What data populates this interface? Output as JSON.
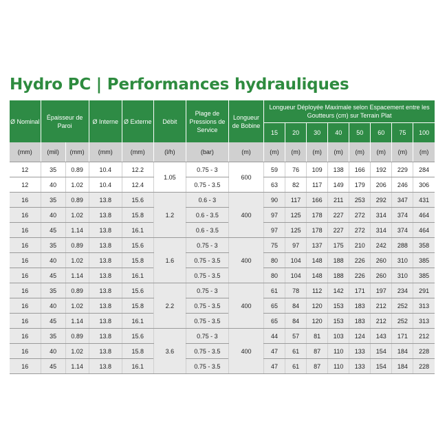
{
  "title": "Hydro PC | Performances hydrauliques",
  "headers": {
    "nominal": "Ø Nominal",
    "epaisseur": "Épaisseur de Paroi",
    "interne": "Ø Interne",
    "externe": "Ø Externe",
    "debit": "Débit",
    "plage": "Plage de Pressions de Service",
    "longueur_bobine": "Longueur de Bobine",
    "longueur_deployee": "Longueur Déployée Maximale selon Espacement entre les Goutteurs (cm) sur Terrain Plat",
    "spacings": [
      "15",
      "20",
      "30",
      "40",
      "50",
      "60",
      "75",
      "100"
    ]
  },
  "units": [
    "(mm)",
    "(mil)",
    "(mm)",
    "(mm)",
    "(mm)",
    "(l/h)",
    "(bar)",
    "(m)",
    "(m)",
    "(m)",
    "(m)",
    "(m)",
    "(m)",
    "(m)",
    "(m)",
    "(m)"
  ],
  "groups": [
    {
      "debit": "1.05",
      "longueur": "600",
      "shade": "white",
      "rows": [
        {
          "nominal": "12",
          "mil": "35",
          "ep": "0.89",
          "int": "10.4",
          "ext": "12.2",
          "plage": "0.75 - 3",
          "vals": [
            "59",
            "76",
            "109",
            "138",
            "166",
            "192",
            "229",
            "284"
          ]
        },
        {
          "nominal": "12",
          "mil": "40",
          "ep": "1.02",
          "int": "10.4",
          "ext": "12.4",
          "plage": "0.75 - 3.5",
          "vals": [
            "63",
            "82",
            "117",
            "149",
            "179",
            "206",
            "246",
            "306"
          ]
        }
      ]
    },
    {
      "debit": "1.2",
      "longueur": "400",
      "shade": "gray",
      "rows": [
        {
          "nominal": "16",
          "mil": "35",
          "ep": "0.89",
          "int": "13.8",
          "ext": "15.6",
          "plage": "0.6 - 3",
          "vals": [
            "90",
            "117",
            "166",
            "211",
            "253",
            "292",
            "347",
            "431"
          ]
        },
        {
          "nominal": "16",
          "mil": "40",
          "ep": "1.02",
          "int": "13.8",
          "ext": "15.8",
          "plage": "0.6 - 3.5",
          "vals": [
            "97",
            "125",
            "178",
            "227",
            "272",
            "314",
            "374",
            "464"
          ]
        },
        {
          "nominal": "16",
          "mil": "45",
          "ep": "1.14",
          "int": "13.8",
          "ext": "16.1",
          "plage": "0.6 - 3.5",
          "vals": [
            "97",
            "125",
            "178",
            "227",
            "272",
            "314",
            "374",
            "464"
          ]
        }
      ]
    },
    {
      "debit": "1.6",
      "longueur": "400",
      "shade": "gray",
      "rows": [
        {
          "nominal": "16",
          "mil": "35",
          "ep": "0.89",
          "int": "13.8",
          "ext": "15.6",
          "plage": "0.75 - 3",
          "vals": [
            "75",
            "97",
            "137",
            "175",
            "210",
            "242",
            "288",
            "358"
          ]
        },
        {
          "nominal": "16",
          "mil": "40",
          "ep": "1.02",
          "int": "13.8",
          "ext": "15.8",
          "plage": "0.75 - 3.5",
          "vals": [
            "80",
            "104",
            "148",
            "188",
            "226",
            "260",
            "310",
            "385"
          ]
        },
        {
          "nominal": "16",
          "mil": "45",
          "ep": "1.14",
          "int": "13.8",
          "ext": "16.1",
          "plage": "0.75 - 3.5",
          "vals": [
            "80",
            "104",
            "148",
            "188",
            "226",
            "260",
            "310",
            "385"
          ]
        }
      ]
    },
    {
      "debit": "2.2",
      "longueur": "400",
      "shade": "gray",
      "rows": [
        {
          "nominal": "16",
          "mil": "35",
          "ep": "0.89",
          "int": "13.8",
          "ext": "15.6",
          "plage": "0.75 - 3",
          "vals": [
            "61",
            "78",
            "112",
            "142",
            "171",
            "197",
            "234",
            "291"
          ]
        },
        {
          "nominal": "16",
          "mil": "40",
          "ep": "1.02",
          "int": "13.8",
          "ext": "15.8",
          "plage": "0.75 - 3.5",
          "vals": [
            "65",
            "84",
            "120",
            "153",
            "183",
            "212",
            "252",
            "313"
          ]
        },
        {
          "nominal": "16",
          "mil": "45",
          "ep": "1.14",
          "int": "13.8",
          "ext": "16.1",
          "plage": "0.75 - 3.5",
          "vals": [
            "65",
            "84",
            "120",
            "153",
            "183",
            "212",
            "252",
            "313"
          ]
        }
      ]
    },
    {
      "debit": "3.6",
      "longueur": "400",
      "shade": "gray",
      "rows": [
        {
          "nominal": "16",
          "mil": "35",
          "ep": "0.89",
          "int": "13.8",
          "ext": "15.6",
          "plage": "0.75 - 3",
          "vals": [
            "44",
            "57",
            "81",
            "103",
            "124",
            "143",
            "171",
            "212"
          ]
        },
        {
          "nominal": "16",
          "mil": "40",
          "ep": "1.02",
          "int": "13.8",
          "ext": "15.8",
          "plage": "0.75 - 3.5",
          "vals": [
            "47",
            "61",
            "87",
            "110",
            "133",
            "154",
            "184",
            "228"
          ]
        },
        {
          "nominal": "16",
          "mil": "45",
          "ep": "1.14",
          "int": "13.8",
          "ext": "16.1",
          "plage": "0.75 - 3.5",
          "vals": [
            "47",
            "61",
            "87",
            "110",
            "133",
            "154",
            "184",
            "228"
          ]
        }
      ]
    }
  ],
  "colors": {
    "header_green": "#2e8b45",
    "title_green": "#2e8b3f",
    "units_gray": "#d0d0d0",
    "row_gray": "#e9e9e9"
  }
}
